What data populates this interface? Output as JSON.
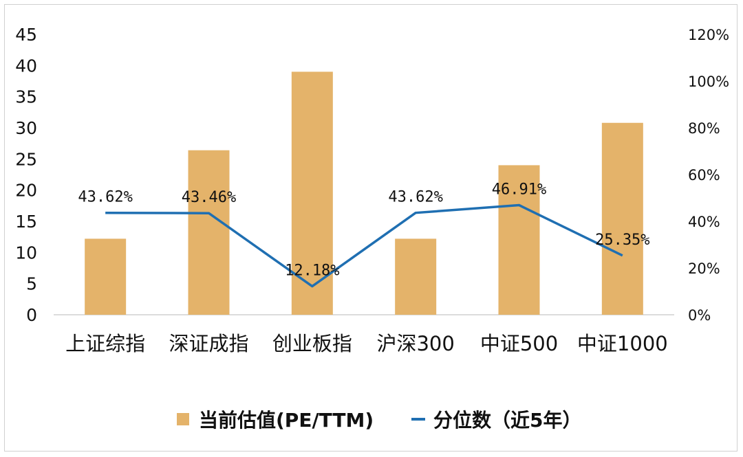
{
  "chart_data": {
    "type": "bar",
    "categories": [
      "上证综指",
      "深证成指",
      "创业板指",
      "沪深300",
      "中证500",
      "中证1000"
    ],
    "series": [
      {
        "name": "当前估值(PE/TTM)",
        "kind": "bar",
        "axis": "left",
        "color": "#e4b36a",
        "values": [
          12.2,
          26.4,
          39.0,
          12.2,
          24.0,
          30.8
        ]
      },
      {
        "name": "分位数（近5年）",
        "kind": "line",
        "axis": "right",
        "color": "#1f6fb2",
        "values": [
          43.62,
          43.46,
          12.18,
          43.62,
          46.91,
          25.35
        ],
        "labels": [
          "43.62%",
          "43.46%",
          "12.18%",
          "43.62%",
          "46.91%",
          "25.35%"
        ]
      }
    ],
    "y_left": {
      "min": 0,
      "max": 45,
      "ticks": [
        "0",
        "5",
        "10",
        "15",
        "20",
        "25",
        "30",
        "35",
        "40",
        "45"
      ]
    },
    "y_right": {
      "min": 0,
      "max": 120,
      "ticks": [
        "0%",
        "20%",
        "40%",
        "60%",
        "80%",
        "100%",
        "120%"
      ]
    },
    "grid": false,
    "legend_position": "bottom"
  }
}
